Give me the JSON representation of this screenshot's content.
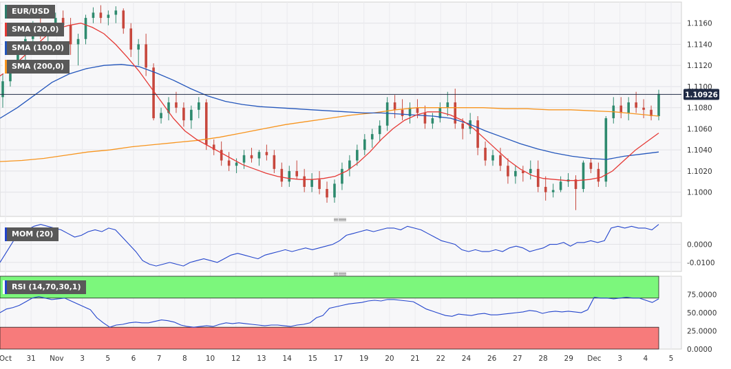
{
  "chart_data": [
    {
      "type": "candlestick",
      "symbol": "EUR/USD",
      "indicators": [
        {
          "name": "SMA (20,0)",
          "color": "#e53935"
        },
        {
          "name": "SMA (100,0)",
          "color": "#2255bb"
        },
        {
          "name": "SMA (200,0)",
          "color": "#f7941d"
        }
      ],
      "last_price": "1.10926",
      "y_ticks": [
        "1.1160",
        "1.1140",
        "1.1120",
        "1.1100",
        "1.1080",
        "1.1060",
        "1.1040",
        "1.1020",
        "1.1000"
      ],
      "ylim": [
        1.0977,
        1.118
      ],
      "x_labels": [
        "Oct",
        "31",
        "Nov",
        "3",
        "5",
        "6",
        "7",
        "8",
        "10",
        "12",
        "13",
        "14",
        "15",
        "17",
        "19",
        "20",
        "21",
        "22",
        "24",
        "26",
        "27",
        "28",
        "29",
        "Dec",
        "3",
        "4",
        "5"
      ],
      "ohlc": [
        [
          1.109,
          1.1112,
          1.108,
          1.1105
        ],
        [
          1.1105,
          1.1125,
          1.11,
          1.112
        ],
        [
          1.112,
          1.1138,
          1.1115,
          1.1132
        ],
        [
          1.1132,
          1.115,
          1.1125,
          1.1145
        ],
        [
          1.1145,
          1.1162,
          1.1138,
          1.1155
        ],
        [
          1.1155,
          1.1168,
          1.1145,
          1.115
        ],
        [
          1.115,
          1.116,
          1.114,
          1.1155
        ],
        [
          1.1155,
          1.117,
          1.1148,
          1.1165
        ],
        [
          1.1165,
          1.1172,
          1.1152,
          1.1158
        ],
        [
          1.1158,
          1.1165,
          1.113,
          1.114
        ],
        [
          1.114,
          1.115,
          1.112,
          1.1145
        ],
        [
          1.1145,
          1.1168,
          1.114,
          1.1165
        ],
        [
          1.1165,
          1.1175,
          1.116,
          1.117
        ],
        [
          1.117,
          1.1177,
          1.116,
          1.1165
        ],
        [
          1.1165,
          1.1172,
          1.1158,
          1.1168
        ],
        [
          1.1168,
          1.1176,
          1.116,
          1.1172
        ],
        [
          1.1172,
          1.1174,
          1.115,
          1.1155
        ],
        [
          1.1155,
          1.116,
          1.1128,
          1.1135
        ],
        [
          1.1135,
          1.1145,
          1.112,
          1.114
        ],
        [
          1.114,
          1.115,
          1.111,
          1.1118
        ],
        [
          1.1118,
          1.1122,
          1.1068,
          1.107
        ],
        [
          1.107,
          1.108,
          1.1065,
          1.1075
        ],
        [
          1.1075,
          1.109,
          1.1068,
          1.1085
        ],
        [
          1.1085,
          1.1095,
          1.1075,
          1.108
        ],
        [
          1.108,
          1.1085,
          1.1062,
          1.1068
        ],
        [
          1.1068,
          1.1082,
          1.106,
          1.1078
        ],
        [
          1.1078,
          1.109,
          1.107,
          1.1085
        ],
        [
          1.1085,
          1.1088,
          1.104,
          1.1045
        ],
        [
          1.1045,
          1.105,
          1.1035,
          1.104
        ],
        [
          1.104,
          1.1048,
          1.1025,
          1.103
        ],
        [
          1.103,
          1.1038,
          1.102,
          1.1025
        ],
        [
          1.1025,
          1.1032,
          1.1018,
          1.1028
        ],
        [
          1.1028,
          1.104,
          1.1022,
          1.1035
        ],
        [
          1.1035,
          1.1042,
          1.1028,
          1.1032
        ],
        [
          1.1032,
          1.104,
          1.1025,
          1.1038
        ],
        [
          1.1038,
          1.1045,
          1.103,
          1.1035
        ],
        [
          1.1035,
          1.104,
          1.1018,
          1.1022
        ],
        [
          1.1022,
          1.1028,
          1.1005,
          1.101
        ],
        [
          1.101,
          1.1025,
          1.1005,
          1.102
        ],
        [
          1.102,
          1.103,
          1.1012,
          1.1015
        ],
        [
          1.1015,
          1.1022,
          1.1,
          1.1005
        ],
        [
          1.1005,
          1.1018,
          1.1,
          1.1012
        ],
        [
          1.1012,
          1.102,
          1.0998,
          1.1003
        ],
        [
          1.1003,
          1.101,
          1.099,
          1.0995
        ],
        [
          1.0995,
          1.1012,
          1.099,
          1.1008
        ],
        [
          1.1008,
          1.1028,
          1.1002,
          1.1022
        ],
        [
          1.1022,
          1.1035,
          1.1015,
          1.103
        ],
        [
          1.103,
          1.1045,
          1.1025,
          1.104
        ],
        [
          1.104,
          1.1055,
          1.1035,
          1.105
        ],
        [
          1.105,
          1.106,
          1.1042,
          1.1055
        ],
        [
          1.1055,
          1.1068,
          1.1048,
          1.1063
        ],
        [
          1.1063,
          1.109,
          1.1058,
          1.1085
        ],
        [
          1.1085,
          1.1092,
          1.107,
          1.1078
        ],
        [
          1.1078,
          1.1088,
          1.1068,
          1.1072
        ],
        [
          1.1072,
          1.1085,
          1.1065,
          1.108
        ],
        [
          1.108,
          1.1088,
          1.107,
          1.1075
        ],
        [
          1.1075,
          1.1082,
          1.106,
          1.1065
        ],
        [
          1.1065,
          1.1075,
          1.106,
          1.107
        ],
        [
          1.107,
          1.1085,
          1.1066,
          1.108
        ],
        [
          1.108,
          1.1095,
          1.1072,
          1.1085
        ],
        [
          1.1085,
          1.1098,
          1.106,
          1.1065
        ],
        [
          1.1065,
          1.107,
          1.105,
          1.106
        ],
        [
          1.106,
          1.1075,
          1.1055,
          1.1068
        ],
        [
          1.1068,
          1.1072,
          1.1035,
          1.1042
        ],
        [
          1.1042,
          1.1048,
          1.1025,
          1.103
        ],
        [
          1.103,
          1.104,
          1.1025,
          1.1035
        ],
        [
          1.1035,
          1.1042,
          1.102,
          1.1025
        ],
        [
          1.1025,
          1.1032,
          1.1008,
          1.1015
        ],
        [
          1.1015,
          1.1025,
          1.1008,
          1.102
        ],
        [
          1.102,
          1.1025,
          1.101,
          1.1018
        ],
        [
          1.1018,
          1.103,
          1.1012,
          1.1022
        ],
        [
          1.1022,
          1.103,
          1.1,
          1.1005
        ],
        [
          1.1005,
          1.1015,
          1.0992,
          1.1
        ],
        [
          1.1,
          1.1008,
          1.0995,
          1.1002
        ],
        [
          1.1002,
          1.1015,
          1.1,
          1.101
        ],
        [
          1.101,
          1.1018,
          1.1005,
          1.1012
        ],
        [
          1.1012,
          1.1016,
          1.0983,
          1.1003
        ],
        [
          1.1003,
          1.103,
          1.1,
          1.1028
        ],
        [
          1.1028,
          1.1032,
          1.1018,
          1.1022
        ],
        [
          1.1022,
          1.1028,
          1.1005,
          1.101
        ],
        [
          1.101,
          1.1072,
          1.1005,
          1.107
        ],
        [
          1.107,
          1.109,
          1.1065,
          1.1082
        ],
        [
          1.1082,
          1.109,
          1.107,
          1.1075
        ],
        [
          1.1075,
          1.109,
          1.1068,
          1.1085
        ],
        [
          1.1085,
          1.1095,
          1.1075,
          1.108
        ],
        [
          1.108,
          1.1088,
          1.107,
          1.1078
        ],
        [
          1.1078,
          1.1082,
          1.1068,
          1.1072
        ],
        [
          1.1072,
          1.1097,
          1.1068,
          1.1093
        ]
      ],
      "sma20": [
        1.111,
        1.1118,
        1.1128,
        1.1138,
        1.1148,
        1.1155,
        1.1158,
        1.116,
        1.1156,
        1.115,
        1.114,
        1.1128,
        1.1115,
        1.11,
        1.1085,
        1.107,
        1.1058,
        1.105,
        1.1044,
        1.1038,
        1.1032,
        1.1026,
        1.1022,
        1.1018,
        1.1015,
        1.1013,
        1.1012,
        1.1012,
        1.1013,
        1.1015,
        1.102,
        1.1028,
        1.1038,
        1.105,
        1.106,
        1.1068,
        1.1073,
        1.1076,
        1.1076,
        1.1073,
        1.1068,
        1.106,
        1.105,
        1.104,
        1.103,
        1.1022,
        1.1016,
        1.1013,
        1.1012,
        1.1011,
        1.1011,
        1.1012,
        1.1014,
        1.102,
        1.103,
        1.104,
        1.1048,
        1.1056
      ],
      "sma100": [
        1.107,
        1.108,
        1.1092,
        1.1104,
        1.1112,
        1.1117,
        1.112,
        1.1121,
        1.1119,
        1.1113,
        1.1106,
        1.1098,
        1.1091,
        1.1086,
        1.1083,
        1.1081,
        1.108,
        1.1079,
        1.1078,
        1.1077,
        1.1076,
        1.1075,
        1.1075,
        1.1074,
        1.1073,
        1.1072,
        1.107,
        1.1065,
        1.1058,
        1.1052,
        1.1046,
        1.1041,
        1.1037,
        1.1034,
        1.1032,
        1.1031,
        1.1034,
        1.1036,
        1.1038
      ],
      "sma200": [
        1.1029,
        1.103,
        1.1032,
        1.1035,
        1.1038,
        1.104,
        1.1043,
        1.1045,
        1.1047,
        1.1049,
        1.1052,
        1.1056,
        1.106,
        1.1064,
        1.1067,
        1.107,
        1.1073,
        1.1075,
        1.1078,
        1.108,
        1.108,
        1.108,
        1.108,
        1.1079,
        1.1079,
        1.1078,
        1.1078,
        1.1077,
        1.1076,
        1.1074,
        1.1072
      ],
      "mom": {
        "label": "MOM (20)",
        "color": "#2244cc",
        "y_ticks": [
          "0.0000",
          "-0.0100"
        ],
        "ylim": [
          -0.015,
          0.012
        ],
        "values": [
          -0.01,
          -0.004,
          0.002,
          0.006,
          0.008,
          0.01,
          0.011,
          0.01,
          0.009,
          0.008,
          0.006,
          0.004,
          0.005,
          0.007,
          0.008,
          0.007,
          0.009,
          0.008,
          0.004,
          0.0,
          -0.004,
          -0.009,
          -0.011,
          -0.012,
          -0.011,
          -0.01,
          -0.011,
          -0.012,
          -0.01,
          -0.009,
          -0.008,
          -0.009,
          -0.01,
          -0.008,
          -0.006,
          -0.005,
          -0.006,
          -0.007,
          -0.008,
          -0.006,
          -0.005,
          -0.004,
          -0.003,
          -0.004,
          -0.003,
          -0.002,
          -0.003,
          -0.002,
          -0.001,
          0.0,
          0.002,
          0.005,
          0.006,
          0.007,
          0.008,
          0.007,
          0.008,
          0.009,
          0.009,
          0.008,
          0.01,
          0.009,
          0.008,
          0.006,
          0.004,
          0.002,
          0.001,
          0.0,
          -0.003,
          -0.004,
          -0.003,
          -0.004,
          -0.004,
          -0.003,
          -0.004,
          -0.002,
          -0.001,
          -0.002,
          -0.004,
          -0.003,
          -0.002,
          0.0,
          0.0,
          0.001,
          -0.001,
          0.001,
          0.001,
          0.002,
          0.001,
          0.002,
          0.009,
          0.01,
          0.009,
          0.01,
          0.009,
          0.009,
          0.008,
          0.011
        ]
      },
      "rsi": {
        "label": "RSI (14,70,30,1)",
        "color": "#2244cc",
        "upper_band": {
          "from": 70,
          "to": 100,
          "color": "#7cf77c"
        },
        "lower_band": {
          "from": 0,
          "to": 30,
          "color": "#f77b7b"
        },
        "y_ticks": [
          "75.0000",
          "50.0000",
          "25.0000",
          "0.0000"
        ],
        "ylim": [
          0,
          100
        ],
        "values": [
          50,
          55,
          57,
          60,
          65,
          70,
          72,
          70,
          68,
          69,
          70,
          66,
          62,
          58,
          54,
          43,
          36,
          30,
          33,
          34,
          36,
          37,
          36,
          36,
          38,
          40,
          39,
          37,
          33,
          31,
          30,
          31,
          32,
          31,
          34,
          36,
          35,
          36,
          35,
          34,
          33,
          32,
          33,
          33,
          32,
          31,
          33,
          34,
          36,
          43,
          46,
          56,
          58,
          60,
          62,
          63,
          64,
          66,
          67,
          66,
          68,
          68,
          67,
          66,
          65,
          60,
          55,
          52,
          49,
          46,
          45,
          48,
          47,
          46,
          48,
          49,
          47,
          47,
          48,
          49,
          50,
          51,
          53,
          52,
          49,
          51,
          52,
          51,
          52,
          51,
          50,
          54,
          71,
          70,
          70,
          69,
          70,
          71,
          70,
          70,
          67,
          64,
          69
        ]
      }
    }
  ]
}
